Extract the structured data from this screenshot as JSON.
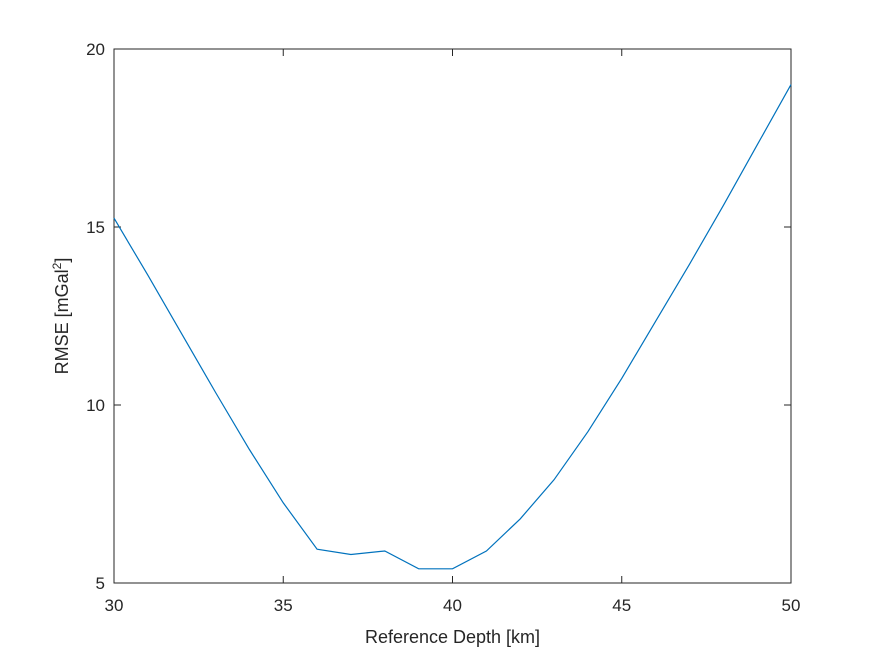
{
  "chart_data": {
    "type": "line",
    "title": "",
    "xlabel": "Reference Depth [km]",
    "ylabel": {
      "text": "RMSE [mGal",
      "superscript": "2",
      "suffix": "]"
    },
    "xlim": [
      30,
      50
    ],
    "ylim": [
      5,
      20
    ],
    "xticks": [
      "30",
      "35",
      "40",
      "45",
      "50"
    ],
    "yticks": [
      "5",
      "10",
      "15",
      "20"
    ],
    "grid": false,
    "legend": "none",
    "series": [
      {
        "color": "#0072BD",
        "x": [
          30,
          31,
          32,
          33,
          34,
          35,
          36,
          37,
          38,
          39,
          40,
          41,
          42,
          43,
          44,
          45,
          46,
          47,
          48,
          49,
          50
        ],
        "y": [
          15.25,
          13.65,
          12.0,
          10.35,
          8.75,
          7.25,
          5.95,
          5.8,
          5.9,
          5.4,
          5.4,
          5.9,
          6.8,
          7.9,
          9.25,
          10.75,
          12.35,
          13.95,
          15.6,
          17.3,
          19.0
        ]
      }
    ]
  }
}
